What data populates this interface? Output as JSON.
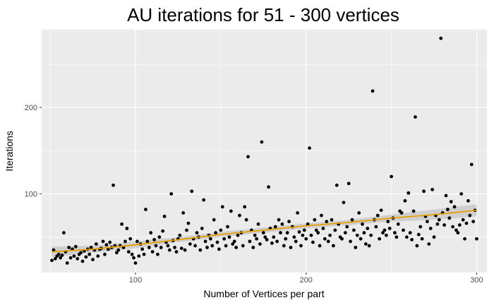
{
  "chart_data": {
    "type": "scatter",
    "title": "AU iterations  for 51 - 300 vertices",
    "xlabel": "Number of Vertices per part",
    "ylabel": "Iterations",
    "xlim": [
      45,
      306
    ],
    "ylim": [
      9,
      290
    ],
    "x_ticks": [
      100,
      200,
      300
    ],
    "y_ticks": [
      100,
      200
    ],
    "x_tick_labels": [
      "100",
      "200",
      "300"
    ],
    "y_tick_labels": [
      "100",
      "200"
    ],
    "grid": true,
    "colors": {
      "panel": "#ebebeb",
      "grid": "#ffffff",
      "points": "#000000",
      "smooth_line": "#e69f00",
      "ribbon": "#bdbdbd"
    },
    "points": [
      [
        51,
        23
      ],
      [
        52,
        35
      ],
      [
        53,
        25
      ],
      [
        54,
        28
      ],
      [
        55,
        30
      ],
      [
        56,
        26
      ],
      [
        57,
        29
      ],
      [
        58,
        55
      ],
      [
        59,
        33
      ],
      [
        60,
        20
      ],
      [
        61,
        38
      ],
      [
        62,
        26
      ],
      [
        63,
        36
      ],
      [
        64,
        28
      ],
      [
        65,
        39
      ],
      [
        66,
        25
      ],
      [
        67,
        30
      ],
      [
        68,
        32
      ],
      [
        69,
        22
      ],
      [
        70,
        34
      ],
      [
        71,
        27
      ],
      [
        72,
        36
      ],
      [
        73,
        30
      ],
      [
        74,
        38
      ],
      [
        75,
        24
      ],
      [
        76,
        35
      ],
      [
        77,
        42
      ],
      [
        78,
        28
      ],
      [
        79,
        36
      ],
      [
        80,
        37
      ],
      [
        81,
        45
      ],
      [
        82,
        30
      ],
      [
        83,
        41
      ],
      [
        84,
        36
      ],
      [
        85,
        44
      ],
      [
        86,
        38
      ],
      [
        87,
        110
      ],
      [
        88,
        40
      ],
      [
        89,
        32
      ],
      [
        90,
        35
      ],
      [
        91,
        40
      ],
      [
        92,
        65
      ],
      [
        93,
        38
      ],
      [
        94,
        45
      ],
      [
        95,
        60
      ],
      [
        96,
        33
      ],
      [
        97,
        48
      ],
      [
        98,
        30
      ],
      [
        99,
        26
      ],
      [
        100,
        20
      ],
      [
        101,
        45
      ],
      [
        102,
        28
      ],
      [
        103,
        42
      ],
      [
        104,
        36
      ],
      [
        105,
        30
      ],
      [
        106,
        82
      ],
      [
        107,
        45
      ],
      [
        108,
        38
      ],
      [
        109,
        55
      ],
      [
        110,
        33
      ],
      [
        111,
        47
      ],
      [
        112,
        40
      ],
      [
        113,
        30
      ],
      [
        114,
        50
      ],
      [
        115,
        38
      ],
      [
        116,
        57
      ],
      [
        117,
        74
      ],
      [
        118,
        44
      ],
      [
        119,
        40
      ],
      [
        120,
        35
      ],
      [
        121,
        100
      ],
      [
        122,
        46
      ],
      [
        123,
        38
      ],
      [
        124,
        33
      ],
      [
        125,
        48
      ],
      [
        126,
        52
      ],
      [
        127,
        37
      ],
      [
        128,
        78
      ],
      [
        129,
        35
      ],
      [
        130,
        58
      ],
      [
        131,
        66
      ],
      [
        132,
        42
      ],
      [
        133,
        103
      ],
      [
        134,
        48
      ],
      [
        135,
        40
      ],
      [
        136,
        55
      ],
      [
        137,
        50
      ],
      [
        138,
        35
      ],
      [
        139,
        60
      ],
      [
        140,
        93
      ],
      [
        141,
        45
      ],
      [
        142,
        38
      ],
      [
        143,
        52
      ],
      [
        144,
        48
      ],
      [
        145,
        40
      ],
      [
        146,
        70
      ],
      [
        147,
        55
      ],
      [
        148,
        44
      ],
      [
        149,
        36
      ],
      [
        150,
        58
      ],
      [
        151,
        85
      ],
      [
        152,
        48
      ],
      [
        153,
        40
      ],
      [
        154,
        62
      ],
      [
        155,
        50
      ],
      [
        156,
        80
      ],
      [
        157,
        42
      ],
      [
        158,
        45
      ],
      [
        159,
        38
      ],
      [
        160,
        52
      ],
      [
        161,
        75
      ],
      [
        162,
        55
      ],
      [
        163,
        40
      ],
      [
        164,
        85
      ],
      [
        165,
        70
      ],
      [
        166,
        143
      ],
      [
        167,
        45
      ],
      [
        168,
        58
      ],
      [
        169,
        38
      ],
      [
        170,
        52
      ],
      [
        171,
        48
      ],
      [
        172,
        65
      ],
      [
        173,
        42
      ],
      [
        174,
        160
      ],
      [
        175,
        55
      ],
      [
        176,
        50
      ],
      [
        177,
        47
      ],
      [
        178,
        108
      ],
      [
        179,
        60
      ],
      [
        180,
        43
      ],
      [
        181,
        50
      ],
      [
        182,
        62
      ],
      [
        183,
        45
      ],
      [
        184,
        70
      ],
      [
        185,
        55
      ],
      [
        186,
        65
      ],
      [
        187,
        40
      ],
      [
        188,
        48
      ],
      [
        189,
        55
      ],
      [
        190,
        68
      ],
      [
        191,
        38
      ],
      [
        192,
        62
      ],
      [
        193,
        50
      ],
      [
        194,
        45
      ],
      [
        195,
        78
      ],
      [
        196,
        56
      ],
      [
        197,
        40
      ],
      [
        198,
        52
      ],
      [
        199,
        58
      ],
      [
        200,
        48
      ],
      [
        201,
        65
      ],
      [
        202,
        153
      ],
      [
        203,
        52
      ],
      [
        204,
        44
      ],
      [
        205,
        70
      ],
      [
        206,
        58
      ],
      [
        207,
        55
      ],
      [
        208,
        40
      ],
      [
        209,
        75
      ],
      [
        210,
        60
      ],
      [
        211,
        48
      ],
      [
        212,
        68
      ],
      [
        213,
        45
      ],
      [
        214,
        52
      ],
      [
        215,
        70
      ],
      [
        216,
        40
      ],
      [
        217,
        58
      ],
      [
        218,
        110
      ],
      [
        219,
        65
      ],
      [
        220,
        50
      ],
      [
        221,
        48
      ],
      [
        222,
        90
      ],
      [
        223,
        55
      ],
      [
        224,
        62
      ],
      [
        225,
        112
      ],
      [
        226,
        45
      ],
      [
        227,
        70
      ],
      [
        228,
        58
      ],
      [
        229,
        38
      ],
      [
        230,
        52
      ],
      [
        231,
        78
      ],
      [
        232,
        48
      ],
      [
        233,
        65
      ],
      [
        234,
        55
      ],
      [
        235,
        42
      ],
      [
        236,
        60
      ],
      [
        237,
        40
      ],
      [
        238,
        52
      ],
      [
        239,
        219
      ],
      [
        240,
        70
      ],
      [
        241,
        62
      ],
      [
        242,
        75
      ],
      [
        243,
        48
      ],
      [
        244,
        81
      ],
      [
        245,
        55
      ],
      [
        246,
        58
      ],
      [
        247,
        52
      ],
      [
        248,
        68
      ],
      [
        249,
        60
      ],
      [
        250,
        120
      ],
      [
        251,
        72
      ],
      [
        252,
        55
      ],
      [
        253,
        50
      ],
      [
        254,
        65
      ],
      [
        255,
        80
      ],
      [
        256,
        78
      ],
      [
        257,
        58
      ],
      [
        258,
        92
      ],
      [
        259,
        50
      ],
      [
        260,
        101
      ],
      [
        261,
        55
      ],
      [
        262,
        47
      ],
      [
        263,
        80
      ],
      [
        264,
        189
      ],
      [
        265,
        40
      ],
      [
        266,
        53
      ],
      [
        267,
        62
      ],
      [
        268,
        48
      ],
      [
        269,
        103
      ],
      [
        270,
        74
      ],
      [
        271,
        68
      ],
      [
        272,
        42
      ],
      [
        273,
        60
      ],
      [
        274,
        105
      ],
      [
        275,
        50
      ],
      [
        276,
        75
      ],
      [
        277,
        65
      ],
      [
        278,
        70
      ],
      [
        279,
        280
      ],
      [
        280,
        78
      ],
      [
        281,
        64
      ],
      [
        282,
        98
      ],
      [
        283,
        82
      ],
      [
        284,
        72
      ],
      [
        285,
        91
      ],
      [
        286,
        62
      ],
      [
        287,
        85
      ],
      [
        288,
        58
      ],
      [
        289,
        55
      ],
      [
        290,
        64
      ],
      [
        291,
        100
      ],
      [
        292,
        70
      ],
      [
        293,
        48
      ],
      [
        294,
        66
      ],
      [
        295,
        92
      ],
      [
        296,
        75
      ],
      [
        297,
        134
      ],
      [
        298,
        68
      ],
      [
        299,
        81
      ],
      [
        300,
        48
      ]
    ],
    "smooth": {
      "method": "loess",
      "x": [
        51,
        75,
        100,
        125,
        150,
        175,
        200,
        225,
        250,
        275,
        300
      ],
      "y": [
        33,
        36,
        41,
        47,
        53,
        58,
        63,
        67,
        72,
        76,
        81
      ],
      "lower": [
        27,
        32,
        37,
        44,
        50,
        55,
        60,
        64,
        68,
        70,
        74
      ],
      "upper": [
        39,
        40,
        45,
        50,
        56,
        61,
        66,
        70,
        76,
        82,
        88
      ]
    }
  }
}
